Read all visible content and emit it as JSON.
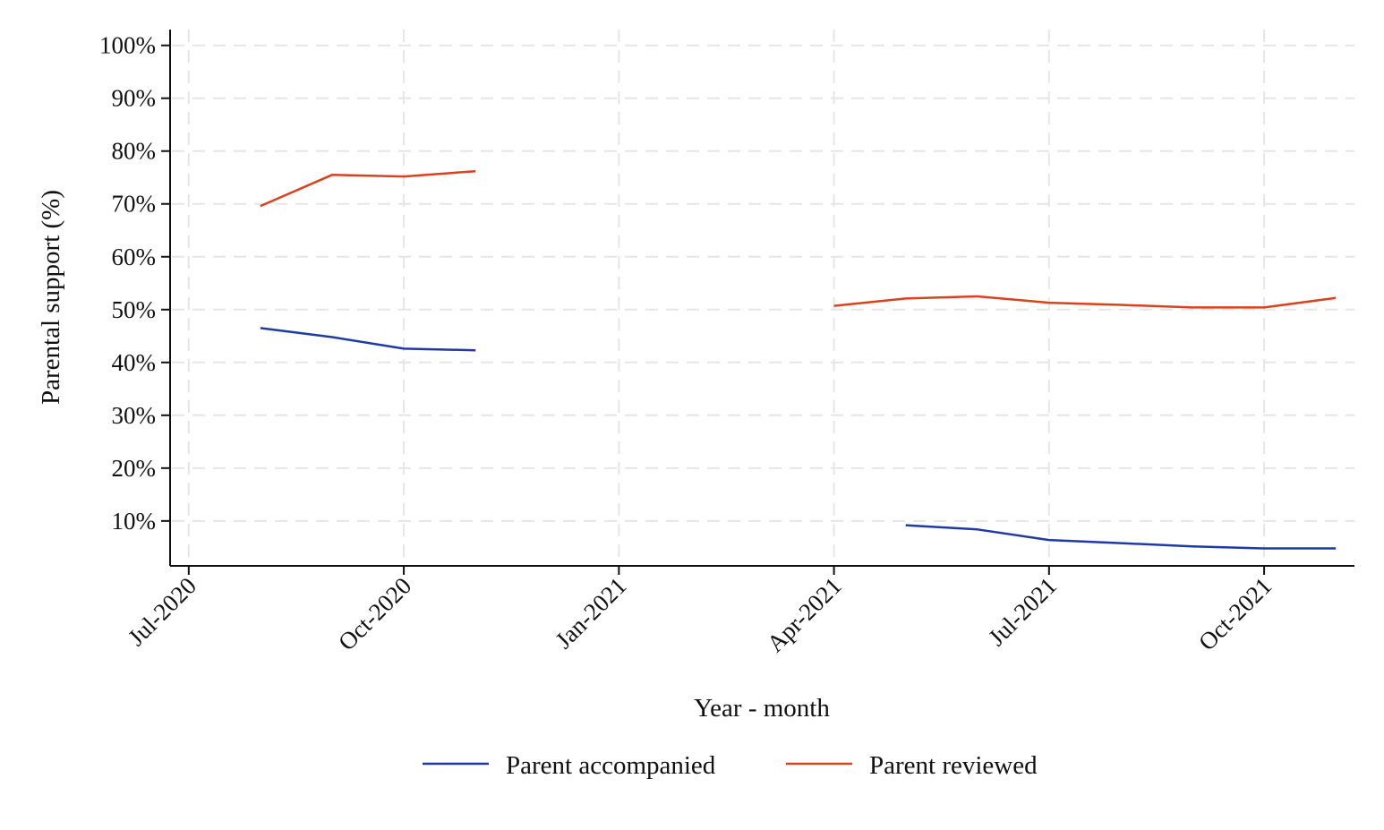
{
  "chart_data": {
    "type": "line",
    "xlabel": "Year - month",
    "ylabel": "Parental support (%)",
    "x_axis": {
      "type": "date",
      "range": [
        "2020-07",
        "2021-11"
      ],
      "ticks": [
        {
          "date": "2020-07",
          "label": "Jul-2020"
        },
        {
          "date": "2020-10",
          "label": "Oct-2020"
        },
        {
          "date": "2021-01",
          "label": "Jan-2021"
        },
        {
          "date": "2021-04",
          "label": "Apr-2021"
        },
        {
          "date": "2021-07",
          "label": "Jul-2021"
        },
        {
          "date": "2021-10",
          "label": "Oct-2021"
        }
      ]
    },
    "y_axis": {
      "range": [
        1.5,
        103
      ],
      "ticks": [
        {
          "value": 10,
          "label": "10%"
        },
        {
          "value": 20,
          "label": "20%"
        },
        {
          "value": 30,
          "label": "30%"
        },
        {
          "value": 40,
          "label": "40%"
        },
        {
          "value": 50,
          "label": "50%"
        },
        {
          "value": 60,
          "label": "60%"
        },
        {
          "value": 70,
          "label": "70%"
        },
        {
          "value": 80,
          "label": "80%"
        },
        {
          "value": 90,
          "label": "90%"
        },
        {
          "value": 100,
          "label": "100%"
        }
      ]
    },
    "grid": true,
    "legend_position": "bottom",
    "series": [
      {
        "name": "Parent accompanied",
        "color": "#1f3aa6",
        "segments": [
          [
            {
              "x": "2020-08",
              "y": 46.5
            },
            {
              "x": "2020-09",
              "y": 44.8
            },
            {
              "x": "2020-10",
              "y": 42.6
            },
            {
              "x": "2020-11",
              "y": 42.3
            }
          ],
          [
            {
              "x": "2021-05",
              "y": 9.2
            },
            {
              "x": "2021-06",
              "y": 8.4
            },
            {
              "x": "2021-07",
              "y": 6.4
            },
            {
              "x": "2021-08",
              "y": 5.8
            },
            {
              "x": "2021-09",
              "y": 5.2
            },
            {
              "x": "2021-10",
              "y": 4.8
            },
            {
              "x": "2021-11",
              "y": 4.8
            }
          ]
        ]
      },
      {
        "name": "Parent reviewed",
        "color": "#d9421c",
        "segments": [
          [
            {
              "x": "2020-08",
              "y": 69.6
            },
            {
              "x": "2020-09",
              "y": 75.5
            },
            {
              "x": "2020-10",
              "y": 75.2
            },
            {
              "x": "2020-11",
              "y": 76.2
            }
          ],
          [
            {
              "x": "2021-04",
              "y": 50.7
            },
            {
              "x": "2021-05",
              "y": 52.1
            },
            {
              "x": "2021-06",
              "y": 52.5
            },
            {
              "x": "2021-07",
              "y": 51.3
            },
            {
              "x": "2021-08",
              "y": 50.9
            },
            {
              "x": "2021-09",
              "y": 50.4
            },
            {
              "x": "2021-10",
              "y": 50.4
            },
            {
              "x": "2021-11",
              "y": 52.2
            }
          ]
        ]
      }
    ]
  }
}
